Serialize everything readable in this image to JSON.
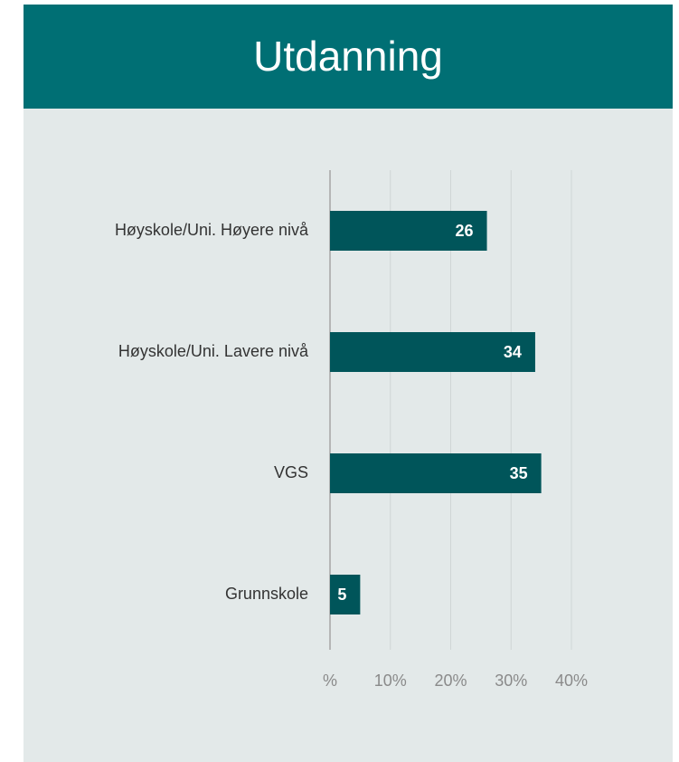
{
  "chart_data": {
    "type": "bar",
    "orientation": "horizontal",
    "title": "Utdanning",
    "categories": [
      "Høyskole/Uni. Høyere nivå",
      "Høyskole/Uni. Lavere nivå",
      "VGS",
      "Grunnskole"
    ],
    "values": [
      26,
      34,
      35,
      5
    ],
    "color": "#00555a",
    "xlim": [
      0,
      40
    ],
    "xticks": [
      {
        "value": 0,
        "label": "%"
      },
      {
        "value": 10,
        "label": "10%"
      },
      {
        "value": 20,
        "label": "20%"
      },
      {
        "value": 30,
        "label": "30%"
      },
      {
        "value": 40,
        "label": "40%"
      }
    ],
    "grid": true
  }
}
